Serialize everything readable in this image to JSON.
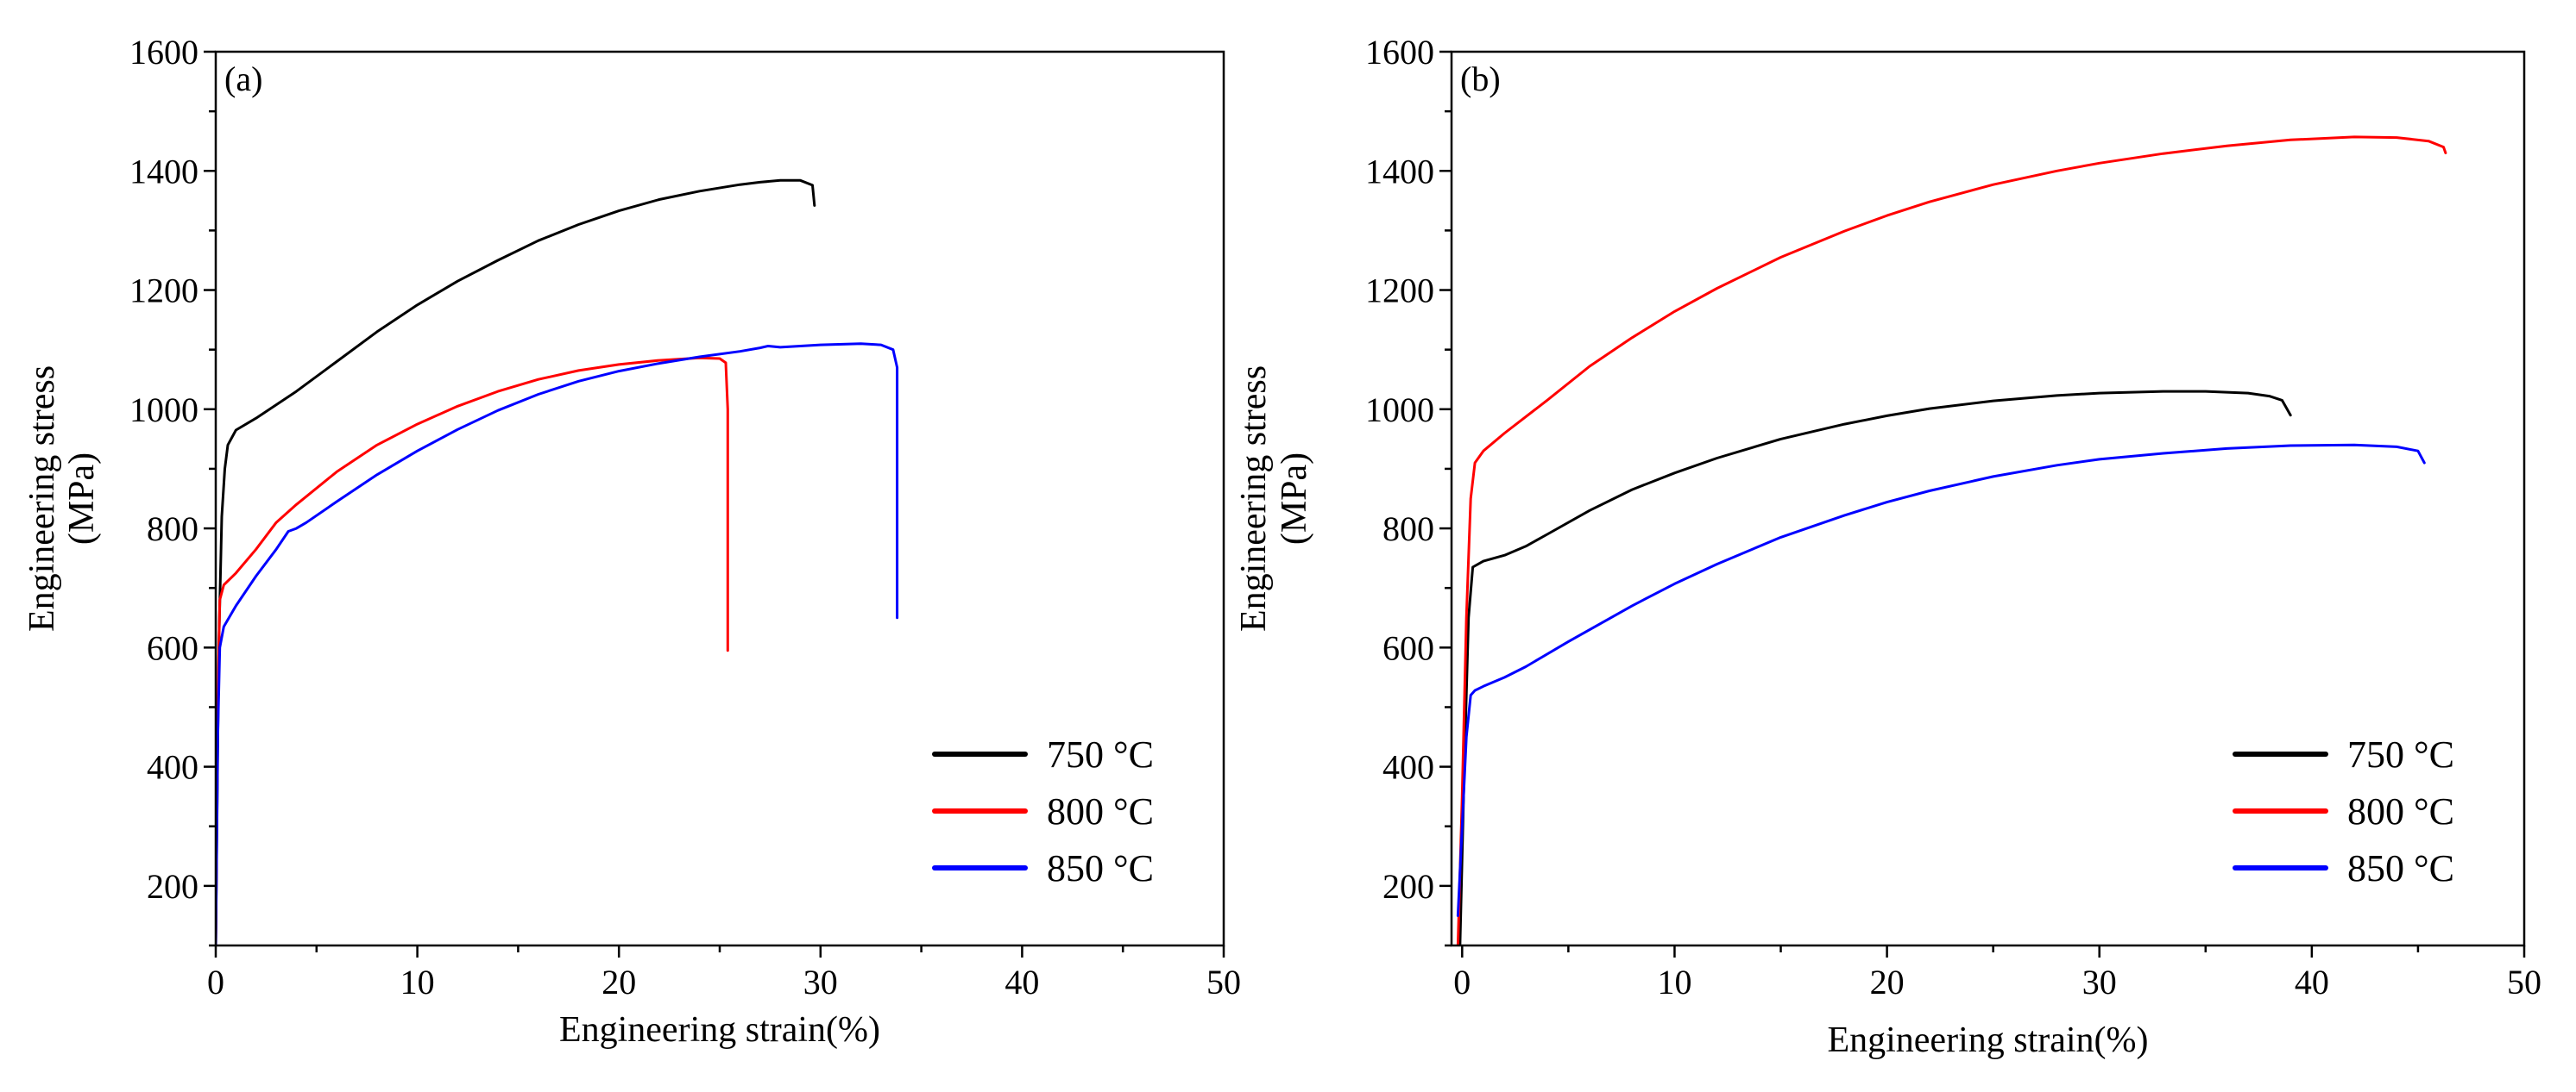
{
  "colors": {
    "750": "#000000",
    "800": "#ff0000",
    "850": "#0000ff"
  },
  "chart_data": [
    {
      "panel_label": "(a)",
      "type": "line",
      "xlabel": "Engineering strain(%)",
      "ylabel": "Engineering stress",
      "ylabel_unit": "(MPa)",
      "xlim": [
        0,
        50
      ],
      "ylim": [
        100,
        1600
      ],
      "xticks": [
        0,
        10,
        20,
        30,
        40,
        50
      ],
      "yticks": [
        200,
        400,
        600,
        800,
        1000,
        1200,
        1400,
        1600
      ],
      "legend_position": "bottom-right",
      "series": [
        {
          "name": "750 °C",
          "color_key": "750",
          "x": [
            0,
            0.15,
            0.3,
            0.45,
            0.6,
            1,
            2,
            4,
            6,
            8,
            10,
            12,
            14,
            16,
            18,
            20,
            22,
            24,
            26,
            27,
            28,
            29,
            29.6,
            29.7
          ],
          "y": [
            100,
            600,
            820,
            900,
            940,
            965,
            985,
            1030,
            1080,
            1130,
            1175,
            1215,
            1250,
            1283,
            1310,
            1333,
            1352,
            1366,
            1377,
            1381,
            1384,
            1384,
            1376,
            1342
          ]
        },
        {
          "name": "800 °C",
          "color_key": "800",
          "x": [
            0,
            0.1,
            0.2,
            0.4,
            1,
            2,
            3,
            4,
            6,
            8,
            10,
            12,
            14,
            16,
            18,
            20,
            22,
            24,
            25,
            25.3,
            25.4,
            25.4
          ],
          "y": [
            100,
            500,
            680,
            705,
            725,
            765,
            810,
            840,
            895,
            940,
            975,
            1005,
            1030,
            1050,
            1065,
            1075,
            1082,
            1086,
            1085,
            1078,
            1000,
            595
          ]
        },
        {
          "name": "850 °C",
          "color_key": "850",
          "x": [
            0,
            0.1,
            0.2,
            0.4,
            1,
            2,
            3,
            3.6,
            4,
            4.5,
            6,
            8,
            10,
            12,
            14,
            16,
            18,
            20,
            22,
            24,
            26,
            27,
            27.4,
            28,
            30,
            32,
            33,
            33.6,
            33.8,
            33.8
          ],
          "y": [
            100,
            450,
            600,
            635,
            670,
            720,
            765,
            795,
            800,
            810,
            845,
            890,
            930,
            966,
            998,
            1025,
            1047,
            1064,
            1077,
            1088,
            1097,
            1103,
            1106,
            1104,
            1108,
            1110,
            1108,
            1100,
            1070,
            650
          ]
        }
      ]
    },
    {
      "panel_label": "(b)",
      "type": "line",
      "xlabel": "Engineering strain(%)",
      "ylabel": "Engineering stress",
      "ylabel_unit": "(MPa)",
      "xlim": [
        -0.5,
        50
      ],
      "ylim": [
        100,
        1600
      ],
      "xticks": [
        0,
        10,
        20,
        30,
        40,
        50
      ],
      "yticks": [
        200,
        400,
        600,
        800,
        1000,
        1200,
        1400,
        1600
      ],
      "legend_position": "bottom-right",
      "series": [
        {
          "name": "750 °C",
          "color_key": "750",
          "x": [
            -0.1,
            0.1,
            0.3,
            0.5,
            1,
            2,
            3,
            4,
            6,
            8,
            10,
            12,
            15,
            18,
            20,
            22,
            25,
            28,
            30,
            33,
            35,
            37,
            38,
            38.6,
            39
          ],
          "y": [
            100,
            400,
            650,
            735,
            745,
            755,
            770,
            790,
            830,
            865,
            893,
            918,
            950,
            975,
            989,
            1001,
            1014,
            1023,
            1027,
            1030,
            1030,
            1027,
            1022,
            1015,
            990
          ]
        },
        {
          "name": "800 °C",
          "color_key": "800",
          "x": [
            -0.2,
            0,
            0.2,
            0.4,
            0.6,
            1,
            2,
            4,
            6,
            8,
            10,
            12,
            15,
            18,
            20,
            22,
            25,
            28,
            30,
            33,
            36,
            39,
            42,
            44,
            45.5,
            46.2,
            46.3
          ],
          "y": [
            100,
            350,
            650,
            850,
            910,
            930,
            960,
            1015,
            1072,
            1120,
            1164,
            1203,
            1255,
            1299,
            1325,
            1348,
            1377,
            1400,
            1413,
            1429,
            1442,
            1452,
            1457,
            1456,
            1450,
            1440,
            1430
          ]
        },
        {
          "name": "850 °C",
          "color_key": "850",
          "x": [
            -0.2,
            0,
            0.2,
            0.4,
            0.6,
            1,
            2,
            3,
            5,
            8,
            10,
            12,
            15,
            18,
            20,
            22,
            25,
            28,
            30,
            33,
            36,
            39,
            42,
            44,
            45,
            45.3
          ],
          "y": [
            150,
            300,
            450,
            520,
            528,
            535,
            550,
            568,
            610,
            670,
            707,
            740,
            785,
            822,
            844,
            863,
            887,
            906,
            916,
            926,
            934,
            939,
            940,
            937,
            930,
            910
          ]
        }
      ]
    }
  ]
}
